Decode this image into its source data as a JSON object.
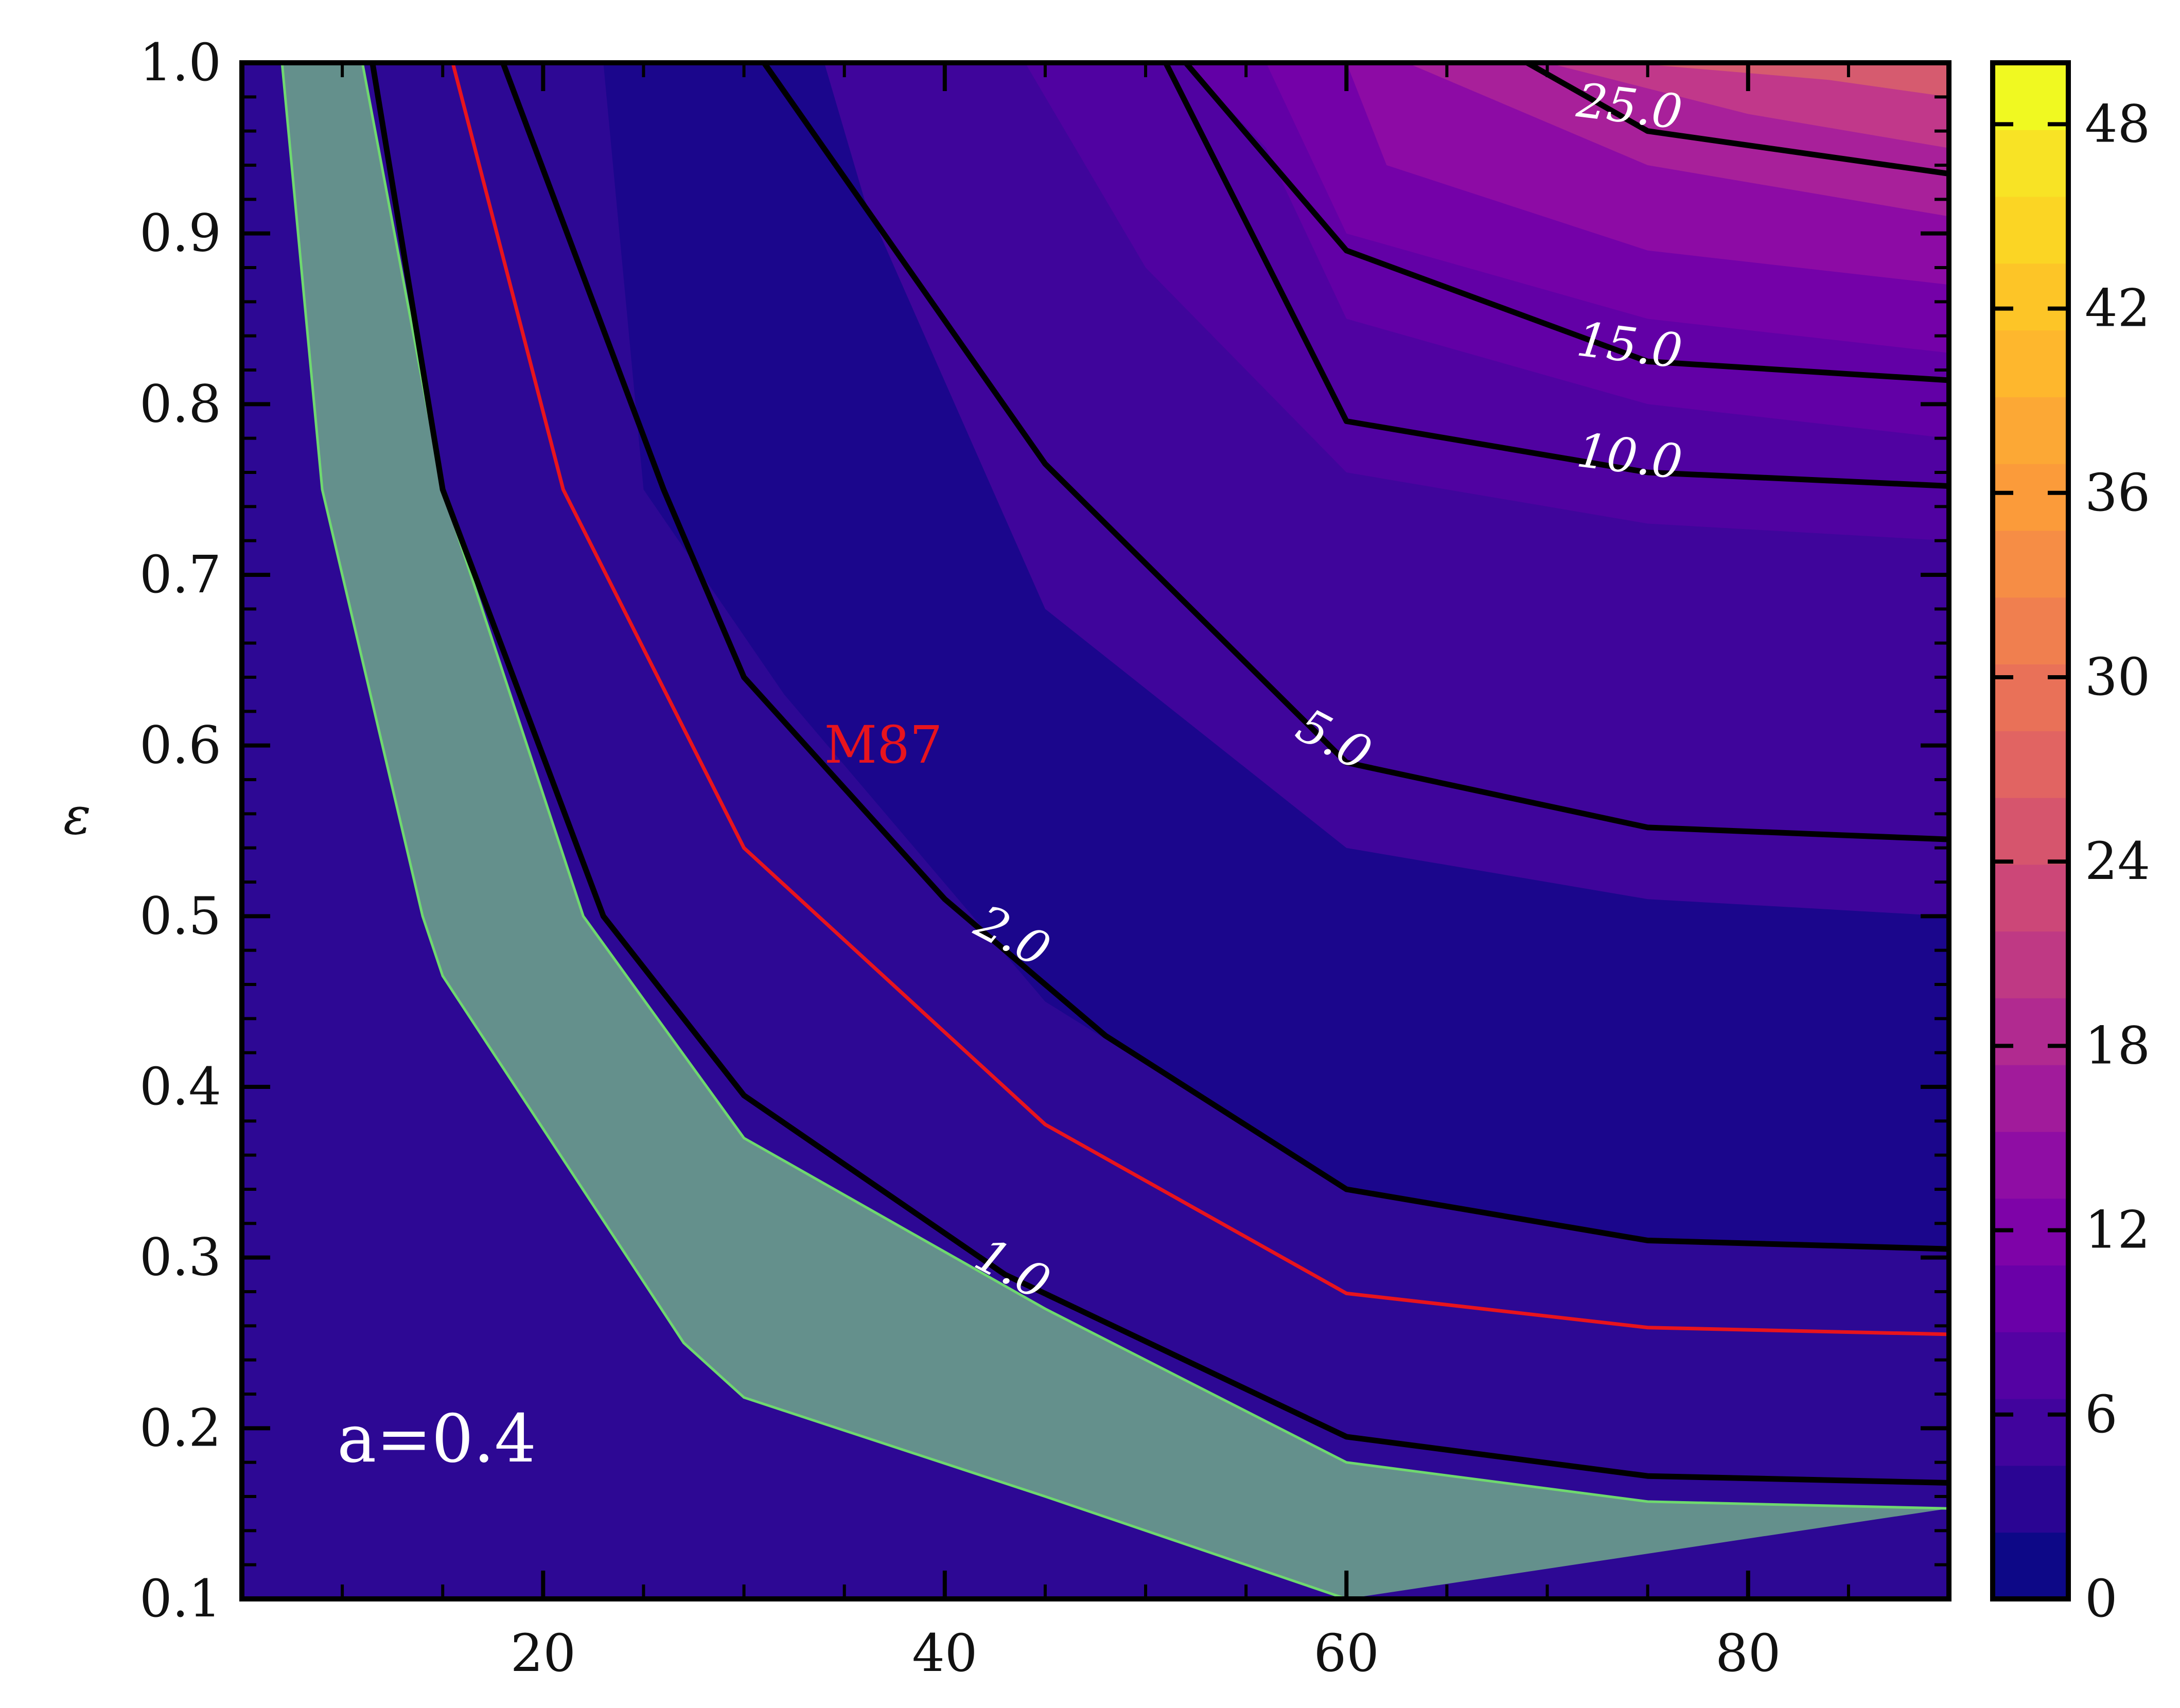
{
  "chart_data": {
    "type": "contour",
    "xlabel": "",
    "ylabel": "ε",
    "xlim": [
      5,
      90
    ],
    "ylim": [
      0.1,
      1.0
    ],
    "x_ticks": [
      20,
      40,
      60,
      80
    ],
    "y_ticks": [
      0.1,
      0.2,
      0.3,
      0.4,
      0.5,
      0.6,
      0.7,
      0.8,
      0.9,
      1.0
    ],
    "x_tick_labels": [
      "20",
      "40",
      "60",
      "80"
    ],
    "y_tick_labels": [
      "0.1",
      "0.2",
      "0.3",
      "0.4",
      "0.5",
      "0.6",
      "0.7",
      "0.8",
      "0.9",
      "1.0"
    ],
    "annotation": "a=0.4",
    "colormap": "plasma",
    "colorbar": {
      "range": [
        0,
        50
      ],
      "ticks": [
        0,
        6,
        12,
        18,
        24,
        30,
        36,
        42,
        48
      ],
      "tick_labels": [
        "0",
        "6",
        "12",
        "18",
        "24",
        "30",
        "36",
        "42",
        "48"
      ]
    },
    "fill_bands": [
      {
        "level": 2,
        "color": "#2d0894",
        "boundary": [
          [
            5,
            0.1
          ],
          [
            5,
            1.0
          ],
          [
            23,
            1.0
          ],
          [
            25,
            0.75
          ],
          [
            32,
            0.63
          ],
          [
            45,
            0.45
          ],
          [
            60,
            0.34
          ],
          [
            75,
            0.31
          ],
          [
            90,
            0.305
          ],
          [
            90,
            0.1
          ]
        ]
      },
      {
        "level": 4,
        "color": "#3f059b",
        "boundary": [
          [
            34,
            1.0
          ],
          [
            36,
            0.92
          ],
          [
            45,
            0.68
          ],
          [
            60,
            0.54
          ],
          [
            75,
            0.51
          ],
          [
            90,
            0.5
          ],
          [
            90,
            1.0
          ]
        ]
      },
      {
        "level": 6,
        "color": "#5002a1",
        "boundary": [
          [
            44,
            1.0
          ],
          [
            50,
            0.88
          ],
          [
            60,
            0.76
          ],
          [
            75,
            0.73
          ],
          [
            90,
            0.72
          ],
          [
            90,
            1.0
          ]
        ]
      },
      {
        "level": 8,
        "color": "#6200a6",
        "boundary": [
          [
            52,
            1.0
          ],
          [
            56,
            0.95
          ],
          [
            60,
            0.85
          ],
          [
            75,
            0.8
          ],
          [
            90,
            0.78
          ],
          [
            90,
            1.0
          ]
        ]
      },
      {
        "level": 10,
        "color": "#7401a8",
        "boundary": [
          [
            56,
            1.0
          ],
          [
            60,
            0.9
          ],
          [
            75,
            0.85
          ],
          [
            90,
            0.83
          ],
          [
            90,
            1.0
          ]
        ]
      },
      {
        "level": 14,
        "color": "#8d0ba5",
        "boundary": [
          [
            60,
            1.0
          ],
          [
            62,
            0.94
          ],
          [
            75,
            0.89
          ],
          [
            90,
            0.87
          ],
          [
            90,
            1.0
          ]
        ]
      },
      {
        "level": 18,
        "color": "#a8209a",
        "boundary": [
          [
            63,
            1.0
          ],
          [
            75,
            0.94
          ],
          [
            90,
            0.91
          ],
          [
            90,
            1.0
          ]
        ]
      },
      {
        "level": 22,
        "color": "#c1388a",
        "boundary": [
          [
            70,
            1.0
          ],
          [
            80,
            0.97
          ],
          [
            90,
            0.95
          ],
          [
            90,
            1.0
          ]
        ]
      },
      {
        "level": 26,
        "color": "#d65b6f",
        "boundary": [
          [
            74,
            1.0
          ],
          [
            84,
            0.99
          ],
          [
            90,
            0.98
          ],
          [
            90,
            1.0
          ]
        ]
      }
    ],
    "contours": [
      {
        "level": 1.0,
        "label": "1.0",
        "label_at": [
          43,
          0.285
        ],
        "points": [
          [
            11.5,
            1.0
          ],
          [
            15,
            0.75
          ],
          [
            23,
            0.5
          ],
          [
            30,
            0.395
          ],
          [
            43,
            0.29
          ],
          [
            60,
            0.195
          ],
          [
            75,
            0.172
          ],
          [
            90,
            0.168
          ]
        ]
      },
      {
        "level": 2.0,
        "label": "2.0",
        "label_at": [
          43,
          0.48
        ],
        "points": [
          [
            18,
            1.0
          ],
          [
            26,
            0.75
          ],
          [
            30,
            0.64
          ],
          [
            40,
            0.51
          ],
          [
            48,
            0.43
          ],
          [
            60,
            0.34
          ],
          [
            75,
            0.31
          ],
          [
            90,
            0.305
          ]
        ]
      },
      {
        "level": 5.0,
        "label": "5.0",
        "label_at": [
          59,
          0.595
        ],
        "points": [
          [
            31,
            1.0
          ],
          [
            45,
            0.765
          ],
          [
            60,
            0.59
          ],
          [
            75,
            0.552
          ],
          [
            90,
            0.545
          ]
        ]
      },
      {
        "level": 10.0,
        "label": "10.0",
        "label_at": [
          74,
          0.76
        ],
        "points": [
          [
            51,
            1.0
          ],
          [
            60,
            0.79
          ],
          [
            75,
            0.76
          ],
          [
            90,
            0.752
          ]
        ]
      },
      {
        "level": 15.0,
        "label": "15.0",
        "label_at": [
          74,
          0.825
        ],
        "points": [
          [
            52,
            1.0
          ],
          [
            60,
            0.89
          ],
          [
            75,
            0.825
          ],
          [
            90,
            0.814
          ]
        ]
      },
      {
        "level": 25.0,
        "label": "25.0",
        "label_at": [
          74,
          0.965
        ],
        "points": [
          [
            69,
            1.0
          ],
          [
            75,
            0.96
          ],
          [
            90,
            0.935
          ]
        ]
      }
    ],
    "m87_curve": {
      "label": "M87",
      "color": "#e8141d",
      "label_at": [
        34,
        0.59
      ],
      "points": [
        [
          15.5,
          1.0
        ],
        [
          21,
          0.75
        ],
        [
          30,
          0.54
        ],
        [
          45,
          0.378
        ],
        [
          60,
          0.279
        ],
        [
          75,
          0.259
        ],
        [
          90,
          0.255
        ]
      ]
    },
    "excluded_band": {
      "fill": "#64908c",
      "edge": "#6fd86f",
      "upper": [
        [
          11,
          1.0
        ],
        [
          15,
          0.75
        ],
        [
          22,
          0.5
        ],
        [
          30,
          0.37
        ],
        [
          45,
          0.27
        ],
        [
          60,
          0.18
        ],
        [
          75,
          0.157
        ],
        [
          90,
          0.153
        ]
      ],
      "lower": [
        [
          7,
          1.0
        ],
        [
          9,
          0.75
        ],
        [
          14,
          0.5
        ],
        [
          15,
          0.465
        ],
        [
          27,
          0.25
        ],
        [
          30,
          0.218
        ],
        [
          45,
          0.16
        ],
        [
          60,
          0.1
        ]
      ]
    },
    "background_color": "#1b068c",
    "colorbar_colors": [
      "#0d0887",
      "#2a0593",
      "#41049d",
      "#5402a3",
      "#6a00a8",
      "#7e03a8",
      "#8f0da4",
      "#a11b9b",
      "#b12a90",
      "#bf3984",
      "#cc4778",
      "#d6556d",
      "#e16462",
      "#e97158",
      "#f07f4f",
      "#f68d45",
      "#fb9b3a",
      "#fca835",
      "#feb72d",
      "#fdc527",
      "#fbd524",
      "#f8e325",
      "#f0f921"
    ]
  }
}
